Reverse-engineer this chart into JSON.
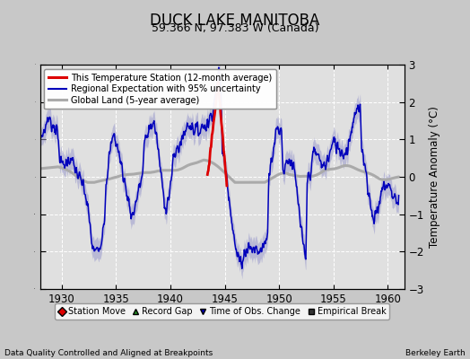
{
  "title": "DUCK LAKE MANITOBA",
  "subtitle": "59.366 N, 97.383 W (Canada)",
  "xlabel_left": "Data Quality Controlled and Aligned at Breakpoints",
  "xlabel_right": "Berkeley Earth",
  "ylabel": "Temperature Anomaly (°C)",
  "xlim": [
    1928.0,
    1961.5
  ],
  "ylim": [
    -3,
    3
  ],
  "yticks": [
    -3,
    -2,
    -1,
    0,
    1,
    2,
    3
  ],
  "xticks": [
    1930,
    1935,
    1940,
    1945,
    1950,
    1955,
    1960
  ],
  "bg_color": "#c8c8c8",
  "plot_bg_color": "#e0e0e0",
  "grid_color": "#ffffff",
  "regional_line_color": "#0000bb",
  "regional_fill_color": "#9999cc",
  "station_line_color": "#dd0000",
  "global_land_color": "#aaaaaa",
  "title_fontsize": 12,
  "subtitle_fontsize": 9,
  "tick_fontsize": 8.5,
  "ylabel_fontsize": 8.5
}
